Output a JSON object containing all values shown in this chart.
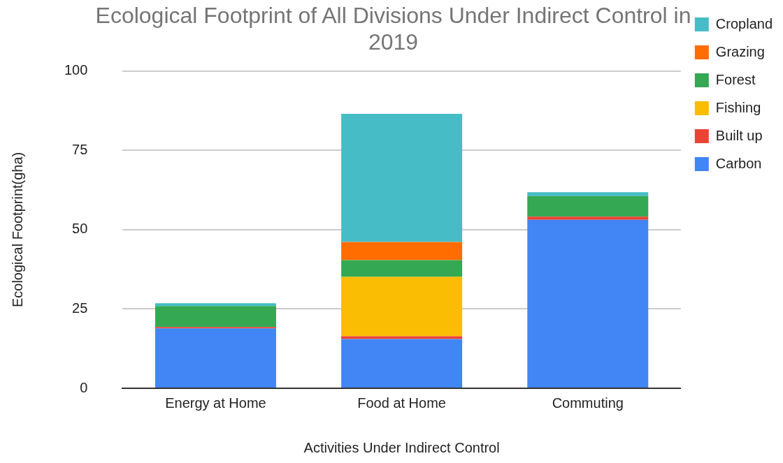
{
  "chart_data": {
    "type": "bar",
    "title": "Ecological Footprint of All Divisions Under Indirect Control in 2019",
    "xlabel": "Activities Under Indirect Control",
    "ylabel": "Ecological Footprint(gha)",
    "categories": [
      "Energy at Home",
      "Food at Home",
      "Commuting"
    ],
    "stacked": true,
    "series": [
      {
        "name": "Carbon",
        "color": "#4285f4",
        "values": [
          18.9,
          15.5,
          53.1
        ]
      },
      {
        "name": "Built up",
        "color": "#ea4335",
        "values": [
          0.4,
          0.9,
          1.0
        ]
      },
      {
        "name": "Fishing",
        "color": "#fbbc04",
        "values": [
          0,
          18.7,
          0
        ]
      },
      {
        "name": "Forest",
        "color": "#34a853",
        "values": [
          6.6,
          5.3,
          6.5
        ]
      },
      {
        "name": "Grazing",
        "color": "#ff6d01",
        "values": [
          0,
          5.7,
          0
        ]
      },
      {
        "name": "Cropland",
        "color": "#46bdc6",
        "values": [
          0.9,
          40.4,
          1.2
        ]
      }
    ],
    "ylim": [
      0,
      100
    ],
    "yticks": [
      0,
      25,
      50,
      75,
      100
    ],
    "grid": "y",
    "legend": "right"
  }
}
